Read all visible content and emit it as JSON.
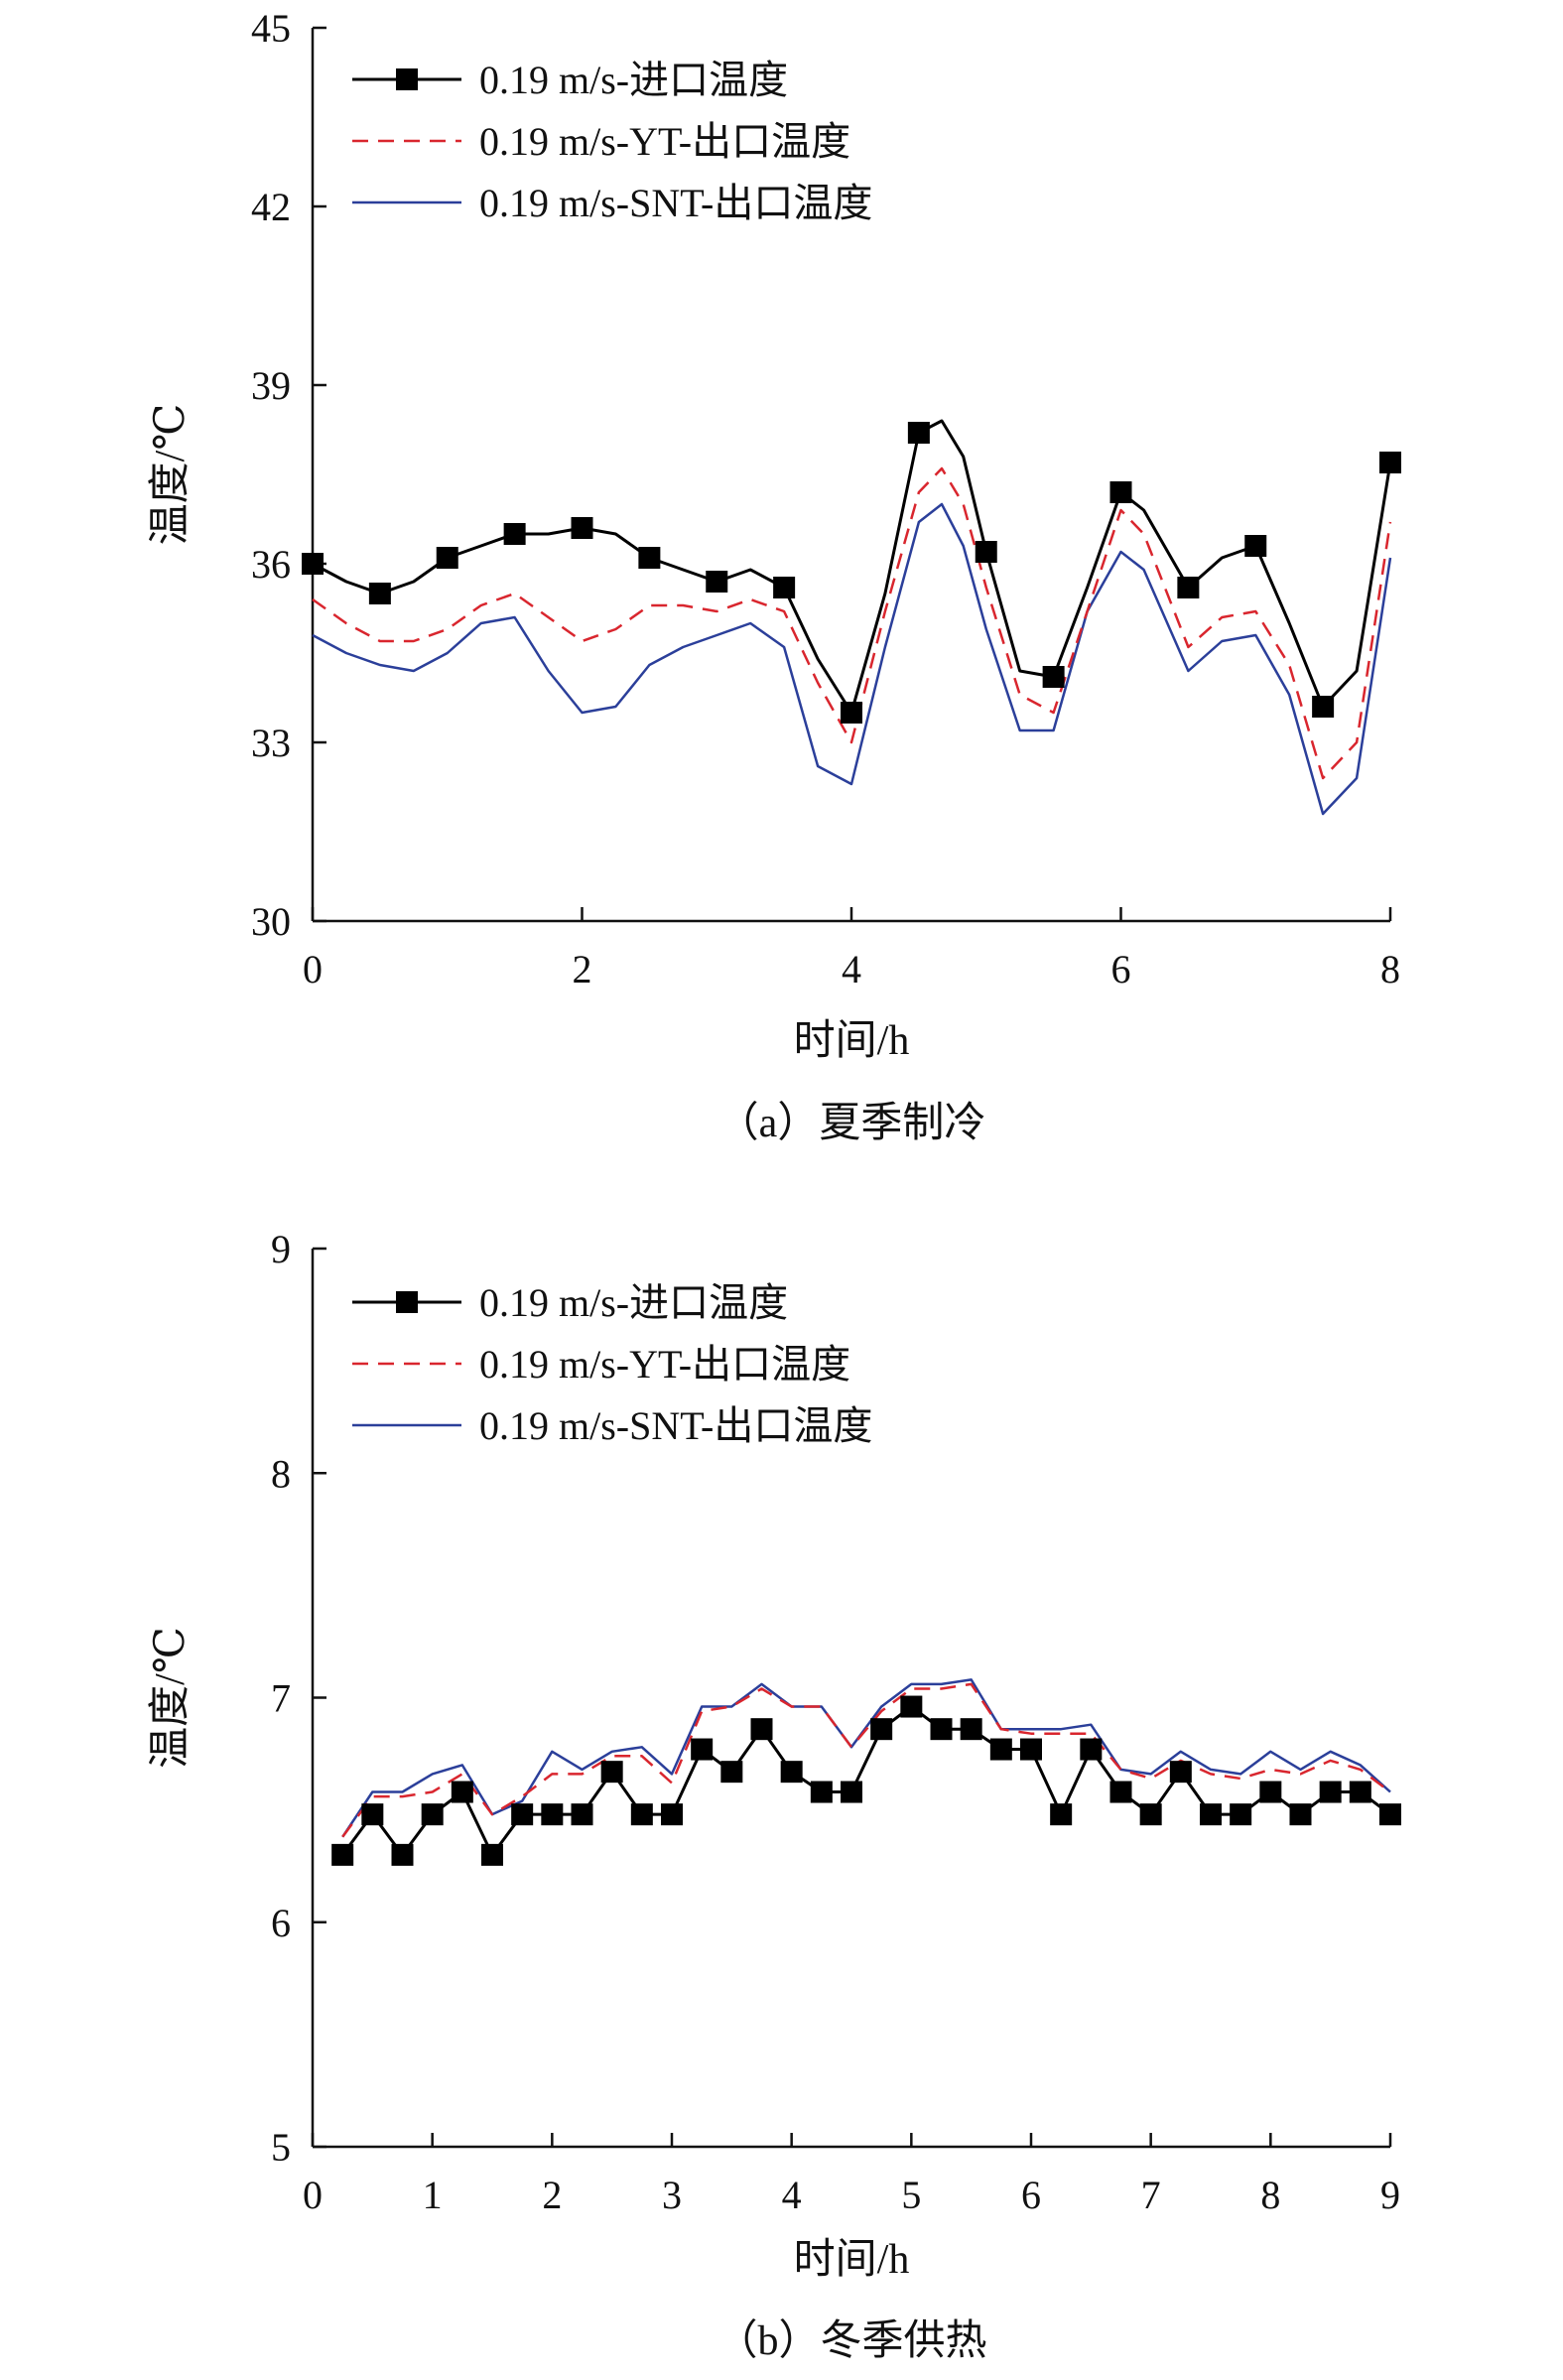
{
  "chart_data": [
    {
      "type": "line",
      "caption": "（a）夏季制冷",
      "xlabel": "时间/h",
      "ylabel": "温度/℃",
      "xlim": [
        0,
        8
      ],
      "ylim": [
        30,
        45
      ],
      "xticks": [
        "0",
        "2",
        "4",
        "6",
        "8"
      ],
      "yticks": [
        "30",
        "33",
        "36",
        "39",
        "42",
        "45"
      ],
      "grid": false,
      "legend_position": "top-left",
      "colors": {
        "inlet": "#000000",
        "yt": "#d9262e",
        "snt": "#2b3f9a"
      },
      "series": [
        {
          "name": "0.19 m/s-进口温度",
          "style": "solid-square-markers",
          "x": [
            0,
            0.25,
            0.5,
            0.75,
            1,
            1.25,
            1.5,
            1.75,
            2,
            2.25,
            2.5,
            2.75,
            3,
            3.25,
            3.5,
            3.75,
            4,
            4.25,
            4.5,
            4.67,
            4.83,
            5,
            5.25,
            5.5,
            5.75,
            6,
            6.17,
            6.5,
            6.75,
            7,
            7.25,
            7.5,
            7.75,
            8
          ],
          "y": [
            36.0,
            35.7,
            35.5,
            35.7,
            36.1,
            36.3,
            36.5,
            36.5,
            36.6,
            36.5,
            36.1,
            35.9,
            35.7,
            35.9,
            35.6,
            34.4,
            33.5,
            35.5,
            38.2,
            38.4,
            37.8,
            36.2,
            34.2,
            34.1,
            35.6,
            37.2,
            36.9,
            35.6,
            36.1,
            36.3,
            35.0,
            33.6,
            34.2,
            37.7
          ],
          "markers_x": [
            0,
            0.5,
            1,
            1.5,
            2,
            2.5,
            3,
            3.5,
            4,
            4.5,
            5,
            5.5,
            6,
            6.5,
            7,
            7.5,
            8
          ]
        },
        {
          "name": "0.19 m/s-YT-出口温度",
          "style": "dashed",
          "x": [
            0,
            0.25,
            0.5,
            0.75,
            1,
            1.25,
            1.5,
            1.75,
            2,
            2.25,
            2.5,
            2.75,
            3,
            3.25,
            3.5,
            3.75,
            4,
            4.25,
            4.5,
            4.67,
            4.83,
            5,
            5.25,
            5.5,
            5.75,
            6,
            6.17,
            6.5,
            6.75,
            7,
            7.25,
            7.5,
            7.75,
            8
          ],
          "y": [
            35.4,
            35.0,
            34.7,
            34.7,
            34.9,
            35.3,
            35.5,
            35.1,
            34.7,
            34.9,
            35.3,
            35.3,
            35.2,
            35.4,
            35.2,
            34.0,
            33.0,
            35.2,
            37.2,
            37.6,
            37.0,
            35.6,
            33.8,
            33.5,
            35.2,
            36.9,
            36.5,
            34.6,
            35.1,
            35.2,
            34.3,
            32.4,
            33.0,
            36.7
          ]
        },
        {
          "name": "0.19 m/s-SNT-出口温度",
          "style": "solid",
          "x": [
            0,
            0.25,
            0.5,
            0.75,
            1,
            1.25,
            1.5,
            1.75,
            2,
            2.25,
            2.5,
            2.75,
            3,
            3.25,
            3.5,
            3.75,
            4,
            4.25,
            4.5,
            4.67,
            4.83,
            5,
            5.25,
            5.5,
            5.75,
            6,
            6.17,
            6.5,
            6.75,
            7,
            7.25,
            7.5,
            7.75,
            8
          ],
          "y": [
            34.8,
            34.5,
            34.3,
            34.2,
            34.5,
            35.0,
            35.1,
            34.2,
            33.5,
            33.6,
            34.3,
            34.6,
            34.8,
            35.0,
            34.6,
            32.6,
            32.3,
            34.6,
            36.7,
            37.0,
            36.3,
            34.9,
            33.2,
            33.2,
            35.2,
            36.2,
            35.9,
            34.2,
            34.7,
            34.8,
            33.8,
            31.8,
            32.4,
            36.1
          ]
        }
      ]
    },
    {
      "type": "line",
      "caption": "（b）冬季供热",
      "xlabel": "时间/h",
      "ylabel": "温度/℃",
      "xlim": [
        0,
        9
      ],
      "ylim": [
        5,
        9
      ],
      "xticks": [
        "0",
        "1",
        "2",
        "3",
        "4",
        "5",
        "6",
        "7",
        "8",
        "9"
      ],
      "yticks": [
        "5",
        "6",
        "7",
        "8",
        "9"
      ],
      "grid": false,
      "legend_position": "top-left",
      "colors": {
        "inlet": "#000000",
        "yt": "#d9262e",
        "snt": "#2b3f9a"
      },
      "series": [
        {
          "name": "0.19 m/s-进口温度",
          "style": "solid-square-markers",
          "x": [
            0.25,
            0.5,
            0.75,
            1,
            1.25,
            1.5,
            1.75,
            2,
            2.25,
            2.5,
            2.75,
            3,
            3.25,
            3.5,
            3.75,
            4,
            4.25,
            4.5,
            4.75,
            5,
            5.25,
            5.5,
            5.75,
            6,
            6.25,
            6.5,
            6.75,
            7,
            7.25,
            7.5,
            7.75,
            8,
            8.25,
            8.5,
            8.75,
            9
          ],
          "y": [
            6.3,
            6.48,
            6.3,
            6.48,
            6.58,
            6.3,
            6.48,
            6.48,
            6.48,
            6.67,
            6.48,
            6.48,
            6.77,
            6.67,
            6.86,
            6.67,
            6.58,
            6.58,
            6.86,
            6.96,
            6.86,
            6.86,
            6.77,
            6.77,
            6.48,
            6.77,
            6.58,
            6.48,
            6.67,
            6.48,
            6.48,
            6.58,
            6.48,
            6.58,
            6.58,
            6.48
          ]
        },
        {
          "name": "0.19 m/s-YT-出口温度",
          "style": "dashed",
          "x": [
            0.25,
            0.5,
            0.75,
            1,
            1.25,
            1.5,
            1.75,
            2,
            2.25,
            2.5,
            2.75,
            3,
            3.25,
            3.5,
            3.75,
            4,
            4.25,
            4.5,
            4.75,
            5,
            5.25,
            5.5,
            5.75,
            6,
            6.25,
            6.5,
            6.75,
            7,
            7.25,
            7.5,
            7.75,
            8,
            8.25,
            8.5,
            8.75,
            9
          ],
          "y": [
            6.38,
            6.56,
            6.56,
            6.58,
            6.66,
            6.48,
            6.56,
            6.66,
            6.66,
            6.74,
            6.74,
            6.62,
            6.94,
            6.96,
            7.04,
            6.96,
            6.96,
            6.78,
            6.94,
            7.04,
            7.04,
            7.06,
            6.86,
            6.84,
            6.84,
            6.84,
            6.68,
            6.64,
            6.72,
            6.66,
            6.64,
            6.68,
            6.66,
            6.72,
            6.68,
            6.58
          ]
        },
        {
          "name": "0.19 m/s-SNT-出口温度",
          "style": "solid",
          "x": [
            0.25,
            0.5,
            0.75,
            1,
            1.25,
            1.5,
            1.75,
            2,
            2.25,
            2.5,
            2.75,
            3,
            3.25,
            3.5,
            3.75,
            4,
            4.25,
            4.5,
            4.75,
            5,
            5.25,
            5.5,
            5.75,
            6,
            6.25,
            6.5,
            6.75,
            7,
            7.25,
            7.5,
            7.75,
            8,
            8.25,
            8.5,
            8.75,
            9
          ],
          "y": [
            6.38,
            6.58,
            6.58,
            6.66,
            6.7,
            6.48,
            6.54,
            6.76,
            6.68,
            6.76,
            6.78,
            6.66,
            6.96,
            6.96,
            7.06,
            6.96,
            6.96,
            6.78,
            6.96,
            7.06,
            7.06,
            7.08,
            6.86,
            6.86,
            6.86,
            6.88,
            6.68,
            6.66,
            6.76,
            6.68,
            6.66,
            6.76,
            6.68,
            6.76,
            6.7,
            6.58
          ]
        }
      ]
    }
  ]
}
